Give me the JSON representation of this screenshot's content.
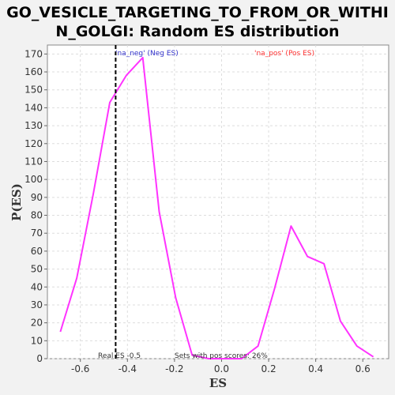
{
  "chart_data": {
    "type": "line",
    "title_lines": [
      "GO_VESICLE_TARGETING_TO_FROM_OR_WITHI",
      "N_GOLGI: Random ES distribution"
    ],
    "xlabel": "ES",
    "ylabel": "P(ES)",
    "xlim": [
      -0.74,
      0.71
    ],
    "ylim": [
      0,
      175
    ],
    "x_ticks": [
      -0.6,
      -0.4,
      -0.2,
      0.0,
      0.2,
      0.4,
      0.6
    ],
    "x_tick_labels": [
      "-0.6",
      "-0.4",
      "-0.2",
      "0.0",
      "0.2",
      "0.4",
      "0.6"
    ],
    "y_ticks": [
      0,
      10,
      20,
      30,
      40,
      50,
      60,
      70,
      80,
      90,
      100,
      110,
      120,
      130,
      140,
      150,
      160,
      170
    ],
    "y_tick_labels": [
      "0",
      "10",
      "20",
      "30",
      "40",
      "50",
      "60",
      "70",
      "80",
      "90",
      "100",
      "110",
      "120",
      "130",
      "140",
      "150",
      "160",
      "170"
    ],
    "grid": true,
    "series": [
      {
        "color": "#ff33ff",
        "x": [
          -0.685,
          -0.615,
          -0.545,
          -0.475,
          -0.405,
          -0.335,
          -0.265,
          -0.195,
          -0.125,
          -0.055,
          0.015,
          0.085,
          0.155,
          0.225,
          0.295,
          0.365,
          0.435,
          0.505,
          0.575,
          0.645
        ],
        "y": [
          15,
          45,
          92,
          143,
          158,
          168,
          82,
          34,
          2,
          0,
          0,
          0,
          7,
          39,
          74,
          57,
          53,
          21,
          7,
          1
        ]
      }
    ],
    "real_es": -0.45,
    "annotations": {
      "neg_label": "'na_neg' (Neg ES)",
      "pos_label": "'na_pos' (Pos ES)",
      "real_es_label": "Real ES -0.5",
      "pos_scores_label": "Sets with pos scores: 26%",
      "neg_color": "#3333cc",
      "pos_color": "#ff3333"
    }
  }
}
